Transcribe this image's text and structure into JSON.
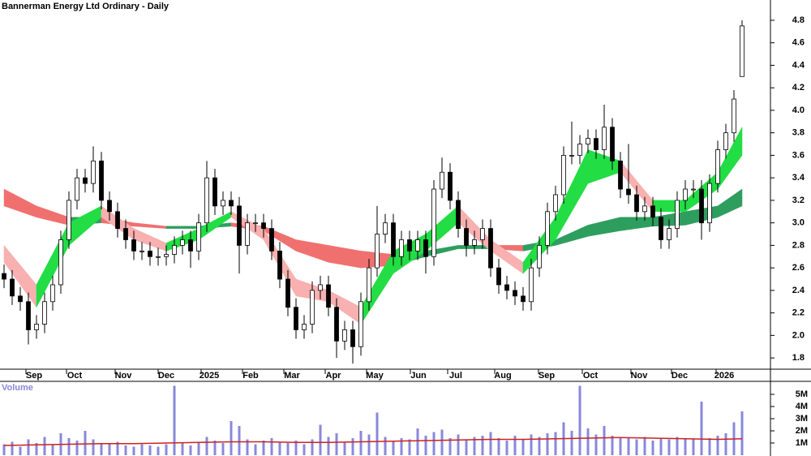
{
  "chart_data": {
    "type": "candlestick",
    "title": "Bannerman Energy Ltd Ordinary - Daily",
    "xlim": [
      -0.5,
      94.5
    ],
    "xticks": [
      {
        "value": 3.7,
        "label": "Sep"
      },
      {
        "value": 8.7,
        "label": "Oct"
      },
      {
        "value": 14.7,
        "label": "Nov"
      },
      {
        "value": 20,
        "label": "Dec"
      },
      {
        "value": 25.3,
        "label": "2025"
      },
      {
        "value": 30.4,
        "label": "Feb"
      },
      {
        "value": 35.5,
        "label": "Mar"
      },
      {
        "value": 40.6,
        "label": "Apr"
      },
      {
        "value": 45.7,
        "label": "May"
      },
      {
        "value": 51.1,
        "label": "Jun"
      },
      {
        "value": 55.7,
        "label": "Jul"
      },
      {
        "value": 61.5,
        "label": "Aug"
      },
      {
        "value": 66.9,
        "label": "Sep"
      },
      {
        "value": 72.3,
        "label": "Oct"
      },
      {
        "value": 78.3,
        "label": "Nov"
      },
      {
        "value": 83.3,
        "label": "Dec"
      },
      {
        "value": 88.8,
        "label": "2026"
      }
    ],
    "ylim": [
      1.7,
      4.98
    ],
    "yticks": [
      1.8,
      {
        "value": 2,
        "label": "2.0"
      },
      2.2,
      2.4,
      2.6,
      2.8,
      {
        "value": 3,
        "label": "3.0"
      },
      3.2,
      3.4,
      3.6,
      3.8,
      {
        "value": 4,
        "label": "4.0"
      },
      4.2,
      4.4,
      4.6,
      4.8
    ],
    "color_up": "#ffffff",
    "color_down": "#000000",
    "open": [
      2.55,
      2.5,
      2.35,
      2.3,
      2.05,
      2.1,
      2.3,
      2.45,
      2.85,
      3.2,
      3.4,
      3.35,
      3.55,
      3.2,
      3.1,
      2.95,
      2.85,
      2.75,
      2.75,
      2.7,
      2.7,
      2.72,
      2.8,
      2.85,
      2.75,
      3.0,
      3.4,
      3.15,
      3.2,
      3.15,
      2.8,
      3.0,
      3.0,
      2.95,
      2.75,
      2.5,
      2.25,
      2.05,
      2.1,
      2.4,
      2.45,
      2.25,
      1.95,
      2.05,
      1.9,
      2.3,
      2.6,
      2.9,
      3.0,
      2.7,
      2.85,
      2.75,
      2.85,
      2.7,
      3.3,
      3.45,
      3.2,
      2.95,
      2.8,
      2.85,
      2.95,
      2.6,
      2.45,
      2.4,
      2.35,
      2.3,
      2.6,
      2.8,
      3.1,
      3.25,
      3.6,
      3.6,
      3.7,
      3.75,
      3.65,
      3.85,
      3.55,
      3.3,
      3.25,
      3.1,
      3.15,
      3.05,
      2.85,
      2.95,
      3.2,
      3.3,
      3.3,
      3.0,
      3.35,
      3.65,
      3.8,
      4.3
    ],
    "high": [
      2.63,
      2.58,
      2.43,
      2.38,
      2.18,
      2.38,
      2.53,
      2.93,
      3.28,
      3.48,
      3.48,
      3.68,
      3.63,
      3.28,
      3.18,
      3.03,
      2.93,
      2.83,
      2.83,
      2.78,
      2.8,
      2.88,
      2.93,
      2.93,
      3.08,
      3.55,
      3.48,
      3.28,
      3.28,
      3.23,
      3.08,
      3.08,
      3.08,
      3.03,
      2.83,
      2.58,
      2.33,
      2.18,
      2.48,
      2.53,
      2.53,
      2.33,
      2.13,
      2.13,
      2.38,
      2.68,
      3.15,
      3.08,
      3.08,
      2.93,
      2.93,
      2.93,
      2.93,
      3.38,
      3.58,
      3.53,
      3.28,
      3.03,
      2.93,
      3.03,
      3.03,
      2.68,
      2.53,
      2.48,
      2.43,
      2.68,
      2.88,
      3.18,
      3.33,
      3.68,
      3.9,
      3.78,
      3.83,
      3.83,
      4.05,
      3.93,
      3.63,
      3.7,
      3.33,
      3.23,
      3.23,
      3.13,
      3.03,
      3.28,
      3.38,
      3.38,
      3.38,
      3.43,
      3.73,
      3.88,
      4.18,
      4.8
    ],
    "low": [
      2.42,
      2.27,
      2.22,
      1.92,
      1.97,
      2.02,
      2.22,
      2.37,
      2.77,
      3.12,
      3.27,
      3.27,
      3.12,
      3.02,
      2.87,
      2.77,
      2.67,
      2.67,
      2.62,
      2.62,
      2.62,
      2.64,
      2.72,
      2.6,
      2.67,
      2.92,
      3.07,
      3.07,
      3.07,
      2.55,
      2.72,
      2.92,
      2.87,
      2.67,
      2.42,
      2.17,
      1.97,
      1.97,
      2.02,
      2.32,
      2.17,
      1.8,
      1.87,
      1.75,
      1.82,
      2.22,
      2.52,
      2.82,
      2.62,
      2.62,
      2.67,
      2.67,
      2.55,
      2.62,
      3.22,
      3.12,
      2.87,
      2.7,
      2.72,
      2.77,
      2.52,
      2.37,
      2.32,
      2.27,
      2.22,
      2.22,
      2.52,
      2.72,
      3.02,
      3.17,
      3.52,
      3.52,
      3.62,
      3.57,
      3.57,
      3.47,
      3.22,
      3.17,
      3.02,
      3.02,
      2.97,
      2.77,
      2.77,
      2.87,
      3.12,
      3.22,
      2.85,
      2.92,
      3.27,
      3.57,
      3.72,
      4.3
    ],
    "close": [
      2.5,
      2.35,
      2.3,
      2.05,
      2.1,
      2.3,
      2.45,
      2.85,
      3.2,
      3.4,
      3.35,
      3.55,
      3.2,
      3.1,
      2.95,
      2.85,
      2.75,
      2.75,
      2.7,
      2.7,
      2.72,
      2.8,
      2.85,
      2.75,
      3.0,
      3.4,
      3.15,
      3.2,
      3.15,
      2.8,
      3.0,
      3.0,
      2.95,
      2.75,
      2.5,
      2.25,
      2.05,
      2.1,
      2.4,
      2.45,
      2.25,
      1.95,
      2.05,
      1.9,
      2.3,
      2.6,
      2.9,
      3.0,
      2.7,
      2.85,
      2.75,
      2.85,
      2.7,
      3.3,
      3.45,
      3.2,
      2.95,
      2.8,
      2.85,
      2.95,
      2.6,
      2.45,
      2.4,
      2.35,
      2.3,
      2.6,
      2.8,
      3.1,
      3.25,
      3.6,
      3.6,
      3.7,
      3.75,
      3.65,
      3.85,
      3.55,
      3.3,
      3.25,
      3.1,
      3.15,
      3.05,
      2.85,
      2.95,
      3.2,
      3.3,
      3.3,
      3.0,
      3.35,
      3.65,
      3.8,
      4.1,
      4.75
    ],
    "ribbons": [
      {
        "x": [
          0,
          4,
          8,
          12,
          16,
          20,
          24,
          28,
          32,
          36,
          40,
          44,
          48,
          52,
          56,
          60,
          64,
          68,
          72,
          76,
          80,
          84,
          88,
          91
        ],
        "upper": [
          3.3,
          3.15,
          3.05,
          3.05,
          3.0,
          2.97,
          2.97,
          3.0,
          2.97,
          2.85,
          2.8,
          2.75,
          2.72,
          2.75,
          2.8,
          2.8,
          2.8,
          2.85,
          2.98,
          3.05,
          3.05,
          3.1,
          3.15,
          3.3
        ],
        "lower": [
          3.15,
          3.05,
          2.98,
          3.0,
          2.97,
          2.95,
          2.95,
          2.97,
          2.93,
          2.75,
          2.65,
          2.6,
          2.62,
          2.7,
          2.77,
          2.77,
          2.75,
          2.8,
          2.88,
          2.93,
          2.97,
          2.98,
          3.05,
          3.15
        ],
        "rise_color": "#2e9e5e",
        "fall_color": "#f07070"
      },
      {
        "x": [
          0,
          4,
          8,
          12,
          16,
          20,
          24,
          28,
          32,
          36,
          40,
          44,
          48,
          52,
          56,
          60,
          64,
          68,
          72,
          76,
          80,
          84,
          88,
          91
        ],
        "upper": [
          2.8,
          2.45,
          3.0,
          3.15,
          2.95,
          2.82,
          2.95,
          3.1,
          2.95,
          2.5,
          2.4,
          2.25,
          2.75,
          2.9,
          3.15,
          2.85,
          2.65,
          3.05,
          3.65,
          3.55,
          3.2,
          3.2,
          3.45,
          3.85
        ],
        "lower": [
          2.65,
          2.25,
          2.8,
          3.05,
          2.85,
          2.75,
          2.85,
          3.05,
          2.85,
          2.35,
          2.3,
          2.1,
          2.55,
          2.75,
          3.0,
          2.75,
          2.55,
          2.85,
          3.35,
          3.45,
          3.1,
          3.1,
          3.3,
          3.6
        ],
        "rise_color": "#22dd44",
        "fall_color": "#f8b0b0"
      }
    ],
    "volume": {
      "label": "Volume",
      "color": "#8888dd",
      "ylim": [
        0,
        6200000
      ],
      "yticks": [
        {
          "value": 1000000,
          "label": "1M"
        },
        {
          "value": 2000000,
          "label": "2M"
        },
        {
          "value": 3000000,
          "label": "3M"
        },
        {
          "value": 4000000,
          "label": "4M"
        },
        {
          "value": 5000000,
          "label": "5M"
        }
      ],
      "values": [
        900000,
        1100000,
        700000,
        1300000,
        1000000,
        1500000,
        900000,
        1800000,
        1400000,
        1200000,
        2000000,
        1300000,
        1000000,
        900000,
        1100000,
        800000,
        700000,
        900000,
        800000,
        700000,
        900000,
        5700000,
        1000000,
        800000,
        1100000,
        1500000,
        1200000,
        1000000,
        2800000,
        2400000,
        1300000,
        900000,
        1200000,
        1400000,
        1100000,
        1000000,
        1200000,
        900000,
        1300000,
        2500000,
        1500000,
        1800000,
        1100000,
        1400000,
        2000000,
        1700000,
        3500000,
        1500000,
        1200000,
        1400000,
        1300000,
        2200000,
        1600000,
        1900000,
        2100000,
        1400000,
        1700000,
        1300000,
        1500000,
        1600000,
        1900000,
        1400000,
        1200000,
        1600000,
        1300000,
        1700000,
        1500000,
        1800000,
        1900000,
        2700000,
        2000000,
        5700000,
        2200000,
        1700000,
        2400000,
        1600000,
        1500000,
        1400000,
        1300000,
        1500000,
        1200000,
        1400000,
        1300000,
        1500000,
        1400000,
        1300000,
        4400000,
        1400000,
        1600000,
        1800000,
        2700000,
        3600000
      ],
      "ma": {
        "color": "#cc2222",
        "x": [
          0,
          4,
          8,
          12,
          16,
          20,
          24,
          28,
          32,
          36,
          40,
          44,
          48,
          52,
          56,
          60,
          64,
          68,
          72,
          76,
          80,
          84,
          88,
          91
        ],
        "values": [
          800000,
          850000,
          900000,
          950000,
          950000,
          1000000,
          1050000,
          1100000,
          1100000,
          1050000,
          1050000,
          1100000,
          1150000,
          1200000,
          1250000,
          1300000,
          1300000,
          1350000,
          1400000,
          1450000,
          1400000,
          1350000,
          1300000,
          1350000
        ]
      }
    }
  }
}
